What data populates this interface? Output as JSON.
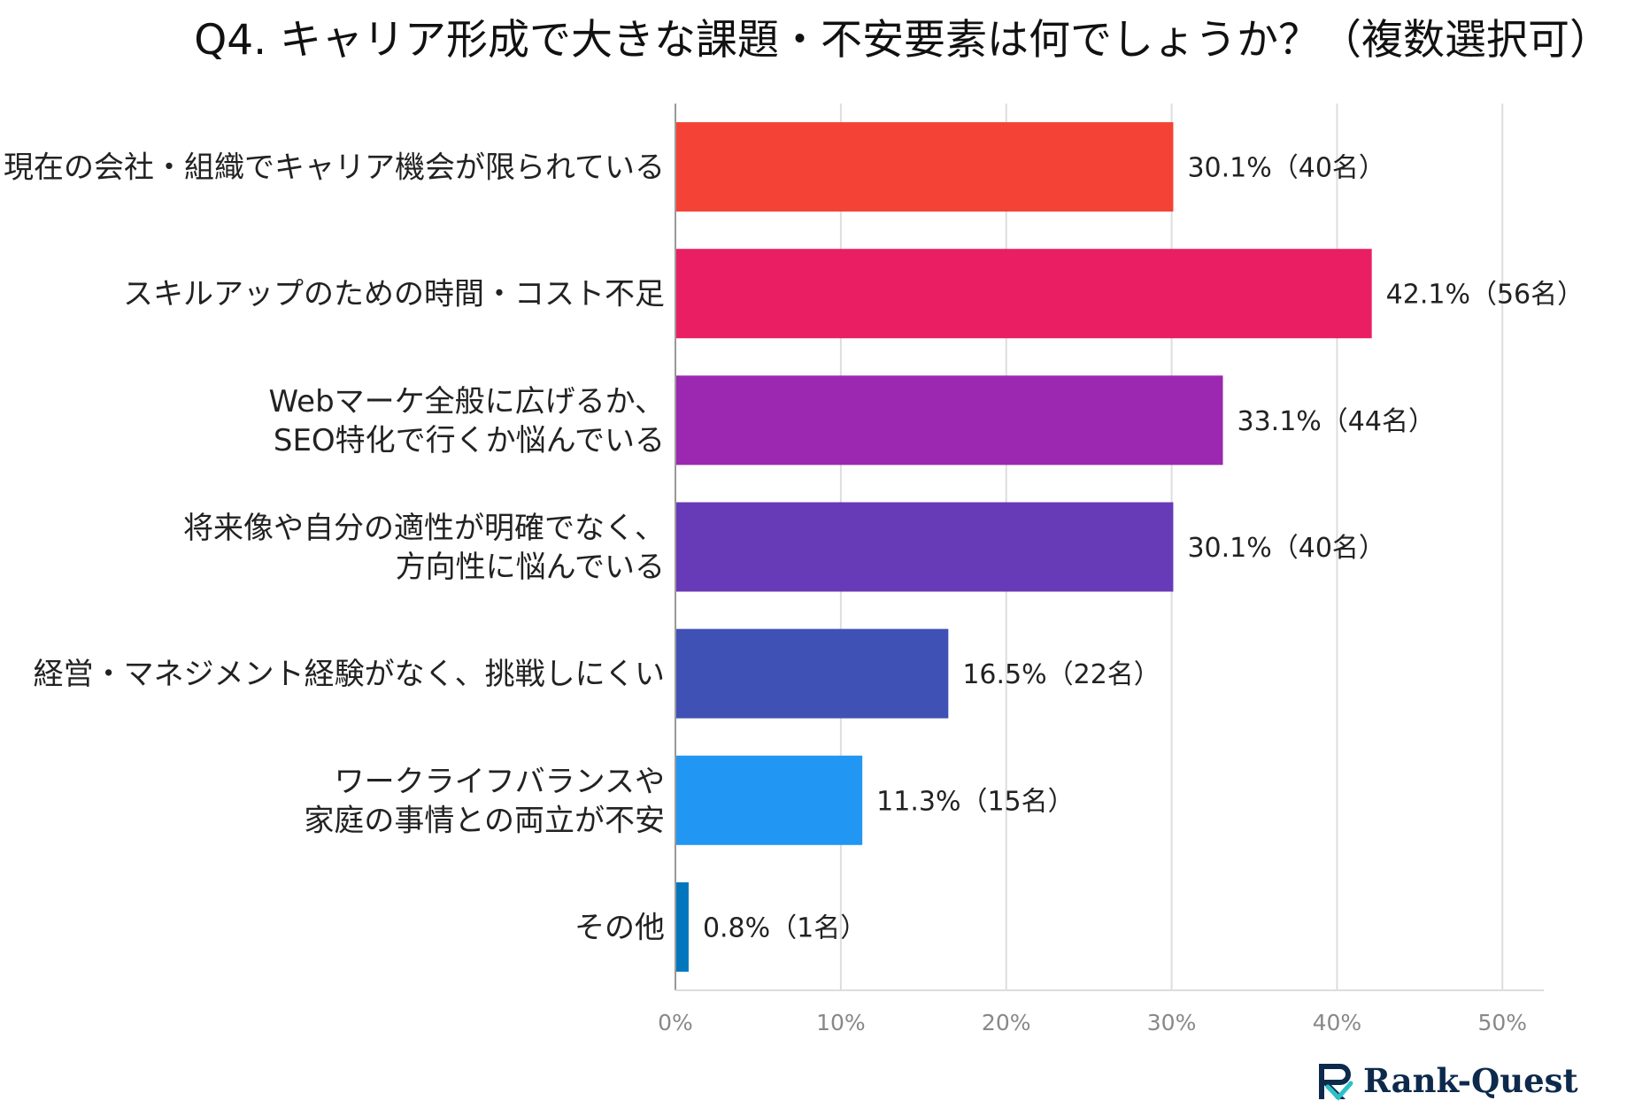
{
  "chart_data": {
    "type": "bar",
    "orientation": "horizontal",
    "title": "Q4. キャリア形成で大きな課題・不安要素は何でしょうか？（複数選択可）",
    "categories": [
      [
        "現在の会社・組織でキャリア機会が限られている"
      ],
      [
        "スキルアップのための時間・コスト不足"
      ],
      [
        "Webマーケ全般に広げるか、",
        "SEO特化で行くか悩んでいる"
      ],
      [
        "将来像や自分の適性が明確でなく、",
        "方向性に悩んでいる"
      ],
      [
        "経営・マネジメント経験がなく、挑戦しにくい"
      ],
      [
        "ワークライフバランスや",
        "家庭の事情との両立が不安"
      ],
      [
        "その他"
      ]
    ],
    "values": [
      30.1,
      42.1,
      33.1,
      30.1,
      16.5,
      11.3,
      0.8
    ],
    "value_labels": [
      "30.1%（40名）",
      "42.1%（56名）",
      "33.1%（44名）",
      "30.1%（40名）",
      "16.5%（22名）",
      "11.3%（15名）",
      "0.8%（1名）"
    ],
    "colors": [
      "#f44336",
      "#e91e63",
      "#9c27b0",
      "#673ab7",
      "#3f51b5",
      "#2196f3",
      "#0277bd"
    ],
    "xticks": [
      "0%",
      "10%",
      "20%",
      "30%",
      "40%",
      "50%"
    ],
    "xlim": [
      0,
      52.5
    ],
    "grid": true
  },
  "brand": {
    "name": "Rank-Quest",
    "logo_text": "R",
    "logo_colors": [
      "#0d2a4d",
      "#2bc1c9"
    ]
  }
}
